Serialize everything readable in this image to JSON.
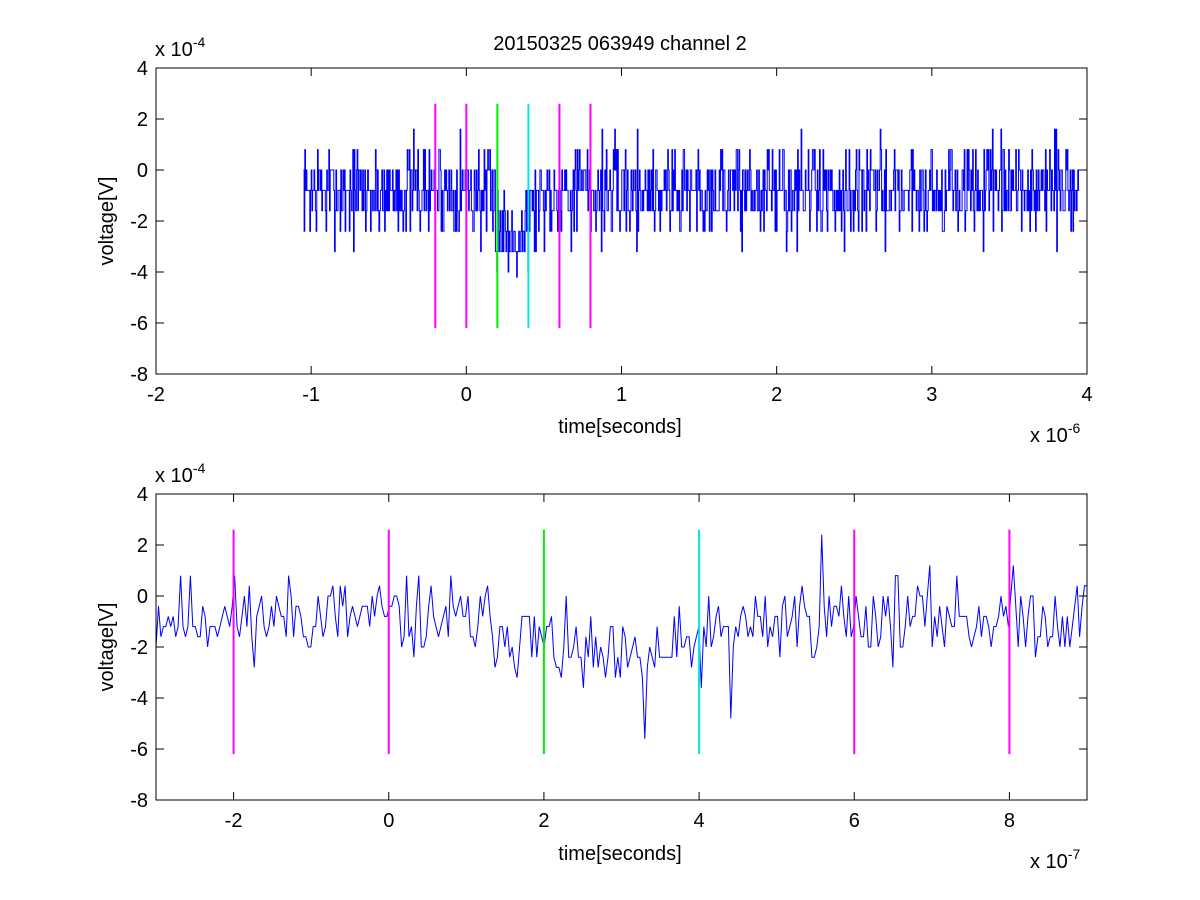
{
  "chart_data": [
    {
      "type": "line",
      "title": "20150325 063949 channel 2",
      "xlabel": "time[seconds]",
      "ylabel": "voltage[V]",
      "x_multiplier": "x 10",
      "x_exponent": "-6",
      "y_multiplier": "x 10",
      "y_exponent": "-4",
      "xlim": [
        -2,
        4
      ],
      "ylim": [
        -8,
        4
      ],
      "xticks": [
        -2,
        -1,
        0,
        1,
        2,
        3,
        4
      ],
      "yticks": [
        -8,
        -6,
        -4,
        -2,
        0,
        2,
        4
      ],
      "series": [
        {
          "style": "step-noise",
          "color": "#0000ff",
          "x_start": -1.05,
          "x_end": 3.95,
          "baseline": -0.8,
          "noise": 1.2,
          "quantum": 0.8,
          "seed": 7,
          "dips": [
            {
              "x": 0.3,
              "width": 0.13,
              "depth": -1.8
            }
          ]
        }
      ],
      "markers": [
        {
          "x": -0.2,
          "color": "#ff00ff"
        },
        {
          "x": 0.0,
          "color": "#ff00ff"
        },
        {
          "x": 0.2,
          "color": "#00ee00"
        },
        {
          "x": 0.4,
          "color": "#00e5e5"
        },
        {
          "x": 0.6,
          "color": "#ff00ff"
        },
        {
          "x": 0.8,
          "color": "#ff00ff"
        }
      ],
      "marker_range": [
        -6.2,
        2.6
      ]
    },
    {
      "type": "line",
      "title": "",
      "xlabel": "time[seconds]",
      "ylabel": "voltage[V]",
      "x_multiplier": "x 10",
      "x_exponent": "-7",
      "y_multiplier": "x 10",
      "y_exponent": "-4",
      "xlim": [
        -3,
        9
      ],
      "ylim": [
        -8,
        4
      ],
      "xticks": [
        -2,
        0,
        2,
        4,
        6,
        8
      ],
      "yticks": [
        -8,
        -6,
        -4,
        -2,
        0,
        2,
        4
      ],
      "series": [
        {
          "style": "line-noise",
          "color": "#0000ff",
          "x_start": -3,
          "x_end": 9,
          "baseline": -0.8,
          "noise": 1.0,
          "quantum": 0.4,
          "seed": 11,
          "dips": [
            {
              "x": 3.0,
              "width": 1.3,
              "depth": -1.9
            }
          ],
          "spikes": [
            {
              "x": 3.3,
              "y": -5.6
            },
            {
              "x": 4.42,
              "y": -4.8
            },
            {
              "x": 5.58,
              "y": 2.4
            },
            {
              "x": 1.65,
              "y": -3.2
            }
          ]
        }
      ],
      "markers": [
        {
          "x": -2,
          "color": "#ff00ff"
        },
        {
          "x": 0,
          "color": "#ff00ff"
        },
        {
          "x": 2,
          "color": "#00ee00"
        },
        {
          "x": 4,
          "color": "#00e5e5"
        },
        {
          "x": 6,
          "color": "#ff00ff"
        },
        {
          "x": 8,
          "color": "#ff00ff"
        }
      ],
      "marker_range": [
        -6.2,
        2.6
      ]
    }
  ]
}
